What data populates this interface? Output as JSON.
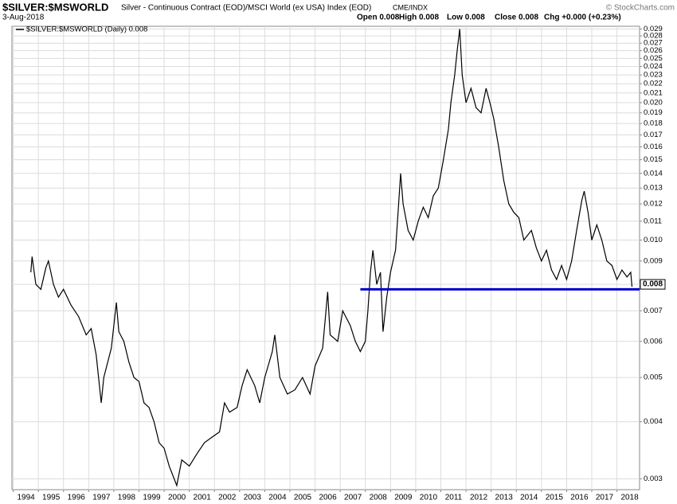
{
  "chart_data": {
    "type": "line",
    "title": "$SILVER:$MSWORLD",
    "subtitle": "Silver - Continuous Contract (EOD)/MSCI World (ex USA) Index (EOD)",
    "exchange": "CME/INDX",
    "copyright": "© StockCharts.com",
    "date": "3-Aug-2018",
    "quote": [
      "Open 0.008",
      "High 0.008",
      "Low 0.008",
      "Close 0.008",
      "Chg +0.000 (+0.23%)"
    ],
    "log_scale": true,
    "grid": true,
    "xlim": [
      1993.95,
      2018.9
    ],
    "xticks": [
      1994,
      1995,
      1996,
      1997,
      1998,
      1999,
      2000,
      2001,
      2002,
      2003,
      2004,
      2005,
      2006,
      2007,
      2008,
      2009,
      2010,
      2011,
      2012,
      2013,
      2014,
      2015,
      2016,
      2017,
      2018
    ],
    "ylim": [
      0.00284,
      0.0294
    ],
    "yticks": [
      0.003,
      0.004,
      0.005,
      0.006,
      0.007,
      0.008,
      0.009,
      {
        "value": 0.01,
        "label": "0.010"
      },
      0.011,
      0.012,
      0.013,
      0.014,
      0.015,
      0.016,
      0.017,
      0.018,
      0.019,
      {
        "value": 0.02,
        "label": "0.020"
      },
      0.021,
      0.022,
      0.023,
      0.024,
      0.025,
      0.026,
      0.027,
      0.028,
      0.029
    ],
    "series": [
      {
        "name": "$SILVER:$MSWORLD (Daily) 0.008",
        "color": "#000000",
        "x": [
          1994.7,
          1994.75,
          1994.9,
          1995.1,
          1995.3,
          1995.4,
          1995.6,
          1995.8,
          1996.0,
          1996.3,
          1996.6,
          1996.9,
          1997.1,
          1997.3,
          1997.5,
          1997.6,
          1997.9,
          1998.1,
          1998.2,
          1998.4,
          1998.6,
          1998.8,
          1999.0,
          1999.2,
          1999.4,
          1999.6,
          1999.8,
          2000.0,
          2000.2,
          2000.4,
          2000.5,
          2000.7,
          2001.0,
          2001.3,
          2001.6,
          2001.9,
          2002.2,
          2002.4,
          2002.6,
          2002.9,
          2003.1,
          2003.3,
          2003.6,
          2003.8,
          2004.0,
          2004.3,
          2004.4,
          2004.6,
          2004.9,
          2005.2,
          2005.5,
          2005.8,
          2006.0,
          2006.3,
          2006.5,
          2006.6,
          2006.9,
          2007.1,
          2007.4,
          2007.6,
          2007.8,
          2008.0,
          2008.1,
          2008.2,
          2008.3,
          2008.45,
          2008.6,
          2008.7,
          2008.85,
          2009.0,
          2009.2,
          2009.3,
          2009.4,
          2009.5,
          2009.7,
          2009.9,
          2010.1,
          2010.3,
          2010.5,
          2010.7,
          2010.9,
          2011.1,
          2011.3,
          2011.4,
          2011.55,
          2011.65,
          2011.75,
          2011.85,
          2012.0,
          2012.2,
          2012.4,
          2012.6,
          2012.8,
          2012.95,
          2013.1,
          2013.3,
          2013.5,
          2013.7,
          2013.9,
          2014.1,
          2014.3,
          2014.6,
          2014.8,
          2015.0,
          2015.2,
          2015.4,
          2015.6,
          2015.8,
          2016.0,
          2016.2,
          2016.4,
          2016.6,
          2016.7,
          2016.85,
          2017.0,
          2017.2,
          2017.4,
          2017.6,
          2017.8,
          2017.9,
          2018.0,
          2018.2,
          2018.4,
          2018.55,
          2018.6
        ],
        "values": [
          0.0085,
          0.0092,
          0.008,
          0.0078,
          0.0087,
          0.009,
          0.008,
          0.0075,
          0.0078,
          0.0072,
          0.0068,
          0.0062,
          0.0064,
          0.0056,
          0.0044,
          0.005,
          0.0058,
          0.0073,
          0.0063,
          0.006,
          0.0054,
          0.005,
          0.0049,
          0.0044,
          0.0043,
          0.004,
          0.0036,
          0.0035,
          0.0032,
          0.003,
          0.0029,
          0.0033,
          0.0032,
          0.0034,
          0.0036,
          0.0037,
          0.0038,
          0.0044,
          0.0042,
          0.0043,
          0.0048,
          0.0052,
          0.0048,
          0.0044,
          0.005,
          0.0057,
          0.0062,
          0.005,
          0.0046,
          0.0047,
          0.005,
          0.0046,
          0.0053,
          0.0058,
          0.0077,
          0.0062,
          0.006,
          0.007,
          0.0065,
          0.006,
          0.0057,
          0.006,
          0.007,
          0.0085,
          0.0095,
          0.008,
          0.0085,
          0.0063,
          0.0075,
          0.0085,
          0.0095,
          0.0115,
          0.014,
          0.012,
          0.0105,
          0.01,
          0.011,
          0.0118,
          0.0112,
          0.0125,
          0.013,
          0.015,
          0.0175,
          0.02,
          0.023,
          0.026,
          0.029,
          0.023,
          0.02,
          0.0215,
          0.0195,
          0.019,
          0.0215,
          0.02,
          0.0185,
          0.016,
          0.0135,
          0.012,
          0.0115,
          0.0112,
          0.01,
          0.0105,
          0.0096,
          0.009,
          0.0095,
          0.0086,
          0.0082,
          0.0088,
          0.0082,
          0.009,
          0.0105,
          0.0122,
          0.0128,
          0.0115,
          0.01,
          0.0108,
          0.01,
          0.009,
          0.0088,
          0.0085,
          0.0082,
          0.0086,
          0.0083,
          0.0085,
          0.0079
        ]
      }
    ],
    "hline": {
      "value": 0.0078,
      "x": 2007.8,
      "color": "#0000cc"
    },
    "last_value": 0.008
  }
}
